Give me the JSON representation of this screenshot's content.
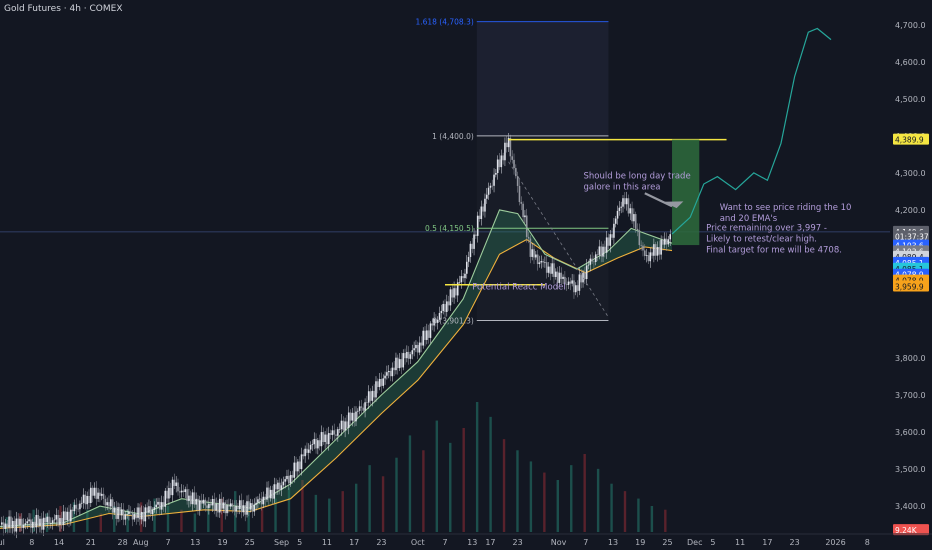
{
  "header": {
    "title": "Gold Futures · 4h · COMEX"
  },
  "colors": {
    "background": "#131722",
    "up_candle": "#e0e3eb",
    "down_candle": "#9598a1",
    "ema_fast": "#9ccc9c",
    "ema_slow": "#f0b13c",
    "projection": "#26a69a",
    "fib_high": "#2962ff",
    "target_box": "#2e6b3c",
    "accent_yellow": "#f5e642",
    "annotation": "#b39ddb",
    "volume_up": "#1f5e58",
    "volume_down": "#6b2630"
  },
  "chart_data": {
    "type": "candlestick",
    "y_axis": {
      "ticks": [
        "4,700.0",
        "4,600.0",
        "4,500.0",
        "4,400.0",
        "4,300.0",
        "4,200.0",
        "3,800.0",
        "3,700.0",
        "3,600.0",
        "3,500.0",
        "3,400.0"
      ],
      "tick_values": [
        4700,
        4600,
        4500,
        4400,
        4300,
        4200,
        3800,
        3700,
        3600,
        3500,
        3400
      ],
      "range": [
        3330,
        4740
      ]
    },
    "x_axis": {
      "ticks": [
        "Jul",
        "8",
        "14",
        "21",
        "28",
        "Aug",
        "7",
        "13",
        "19",
        "25",
        "Sep",
        "5",
        "11",
        "17",
        "23",
        "Oct",
        "7",
        "13",
        "17",
        "23",
        "Nov",
        "7",
        "13",
        "19",
        "25",
        "Dec",
        "5",
        "11",
        "17",
        "23",
        "2026",
        "8"
      ],
      "tick_days": [
        0,
        7,
        13,
        20,
        27,
        31,
        37,
        43,
        49,
        55,
        62,
        66,
        72,
        78,
        84,
        92,
        98,
        104,
        108,
        114,
        123,
        129,
        135,
        141,
        147,
        153,
        157,
        163,
        169,
        175,
        184,
        191
      ],
      "day_range": [
        0,
        196
      ]
    },
    "price_path": [
      {
        "day": 0,
        "price": 3350
      },
      {
        "day": 8,
        "price": 3355
      },
      {
        "day": 14,
        "price": 3365
      },
      {
        "day": 18,
        "price": 3410
      },
      {
        "day": 21,
        "price": 3440
      },
      {
        "day": 26,
        "price": 3380
      },
      {
        "day": 31,
        "price": 3375
      },
      {
        "day": 36,
        "price": 3410
      },
      {
        "day": 38,
        "price": 3460
      },
      {
        "day": 43,
        "price": 3410
      },
      {
        "day": 48,
        "price": 3400
      },
      {
        "day": 55,
        "price": 3395
      },
      {
        "day": 60,
        "price": 3440
      },
      {
        "day": 64,
        "price": 3480
      },
      {
        "day": 68,
        "price": 3560
      },
      {
        "day": 74,
        "price": 3600
      },
      {
        "day": 80,
        "price": 3670
      },
      {
        "day": 84,
        "price": 3740
      },
      {
        "day": 88,
        "price": 3790
      },
      {
        "day": 92,
        "price": 3830
      },
      {
        "day": 98,
        "price": 3940
      },
      {
        "day": 102,
        "price": 4020
      },
      {
        "day": 106,
        "price": 4200
      },
      {
        "day": 110,
        "price": 4330
      },
      {
        "day": 112,
        "price": 4385
      },
      {
        "day": 114,
        "price": 4260
      },
      {
        "day": 117,
        "price": 4080
      },
      {
        "day": 120,
        "price": 4050
      },
      {
        "day": 124,
        "price": 4010
      },
      {
        "day": 127,
        "price": 3990
      },
      {
        "day": 130,
        "price": 4060
      },
      {
        "day": 134,
        "price": 4110
      },
      {
        "day": 137,
        "price": 4230
      },
      {
        "day": 139,
        "price": 4195
      },
      {
        "day": 142,
        "price": 4070
      },
      {
        "day": 145,
        "price": 4095
      },
      {
        "day": 148,
        "price": 4135
      }
    ],
    "ema_fast": [
      {
        "day": 0,
        "price": 3345
      },
      {
        "day": 14,
        "price": 3355
      },
      {
        "day": 22,
        "price": 3400
      },
      {
        "day": 31,
        "price": 3378
      },
      {
        "day": 40,
        "price": 3420
      },
      {
        "day": 55,
        "price": 3395
      },
      {
        "day": 64,
        "price": 3460
      },
      {
        "day": 74,
        "price": 3580
      },
      {
        "day": 84,
        "price": 3700
      },
      {
        "day": 92,
        "price": 3790
      },
      {
        "day": 102,
        "price": 3960
      },
      {
        "day": 110,
        "price": 4200
      },
      {
        "day": 114,
        "price": 4190
      },
      {
        "day": 120,
        "price": 4080
      },
      {
        "day": 127,
        "price": 4040
      },
      {
        "day": 134,
        "price": 4090
      },
      {
        "day": 139,
        "price": 4150
      },
      {
        "day": 148,
        "price": 4110
      }
    ],
    "ema_slow": [
      {
        "day": 0,
        "price": 3340
      },
      {
        "day": 14,
        "price": 3350
      },
      {
        "day": 24,
        "price": 3380
      },
      {
        "day": 31,
        "price": 3372
      },
      {
        "day": 45,
        "price": 3390
      },
      {
        "day": 55,
        "price": 3385
      },
      {
        "day": 64,
        "price": 3420
      },
      {
        "day": 74,
        "price": 3530
      },
      {
        "day": 84,
        "price": 3650
      },
      {
        "day": 92,
        "price": 3740
      },
      {
        "day": 102,
        "price": 3890
      },
      {
        "day": 110,
        "price": 4080
      },
      {
        "day": 116,
        "price": 4120
      },
      {
        "day": 122,
        "price": 4070
      },
      {
        "day": 129,
        "price": 4030
      },
      {
        "day": 136,
        "price": 4070
      },
      {
        "day": 142,
        "price": 4100
      },
      {
        "day": 148,
        "price": 4090
      }
    ],
    "projection_path": [
      {
        "day": 148,
        "price": 4135
      },
      {
        "day": 152,
        "price": 4180
      },
      {
        "day": 155,
        "price": 4270
      },
      {
        "day": 158,
        "price": 4290
      },
      {
        "day": 162,
        "price": 4255
      },
      {
        "day": 166,
        "price": 4300
      },
      {
        "day": 169,
        "price": 4280
      },
      {
        "day": 172,
        "price": 4380
      },
      {
        "day": 175,
        "price": 4560
      },
      {
        "day": 178,
        "price": 4680
      },
      {
        "day": 180,
        "price": 4690
      },
      {
        "day": 183,
        "price": 4660
      }
    ],
    "volume": [
      4,
      5,
      6,
      5,
      7,
      8,
      6,
      5,
      7,
      6,
      8,
      9,
      7,
      6,
      5,
      7,
      9,
      11,
      8,
      7,
      9,
      12,
      14,
      10,
      9,
      11,
      13,
      18,
      15,
      20,
      26,
      22,
      30,
      24,
      28,
      35,
      31,
      25,
      22,
      19,
      16,
      14,
      18,
      21,
      17,
      13,
      11,
      9,
      7,
      6
    ],
    "fib_levels": [
      {
        "label": "1.618 (4,708.3)",
        "price": 4708.3,
        "color": "#2962ff"
      },
      {
        "label": "1 (4,400.0)",
        "price": 4400.0,
        "color": "#b2b5be"
      },
      {
        "label": "0.5 (4,150.5)",
        "price": 4150.5,
        "color": "#81c784"
      },
      {
        "label": "0 (3,901.3)",
        "price": 3901.3,
        "color": "#b2b5be"
      }
    ],
    "price_badges": [
      {
        "text": "4,389.9",
        "bg": "#f5e642",
        "fg": "#131722",
        "price": 4389.9
      },
      {
        "text": "4,140.6",
        "bg": "#5d606b",
        "fg": "#ffffff",
        "price": 4140.6
      },
      {
        "text": "01:37:37",
        "bg": "#5d606b",
        "fg": "#ffffff",
        "price": 4128
      },
      {
        "text": "4,103.6",
        "bg": "#2962ff",
        "fg": "#ffffff",
        "price": 4103.6
      },
      {
        "text": "4,103.6",
        "bg": "#787b86",
        "fg": "#ffffff",
        "price": 4088
      },
      {
        "text": "4,089.4",
        "bg": "#d1d4dc",
        "fg": "#131722",
        "price": 4073
      },
      {
        "text": "4,085.1",
        "bg": "#2962ff",
        "fg": "#ffffff",
        "price": 4057
      },
      {
        "text": "4,085.1",
        "bg": "#26c6da",
        "fg": "#131722",
        "price": 4041
      },
      {
        "text": "4,078.9",
        "bg": "#2962ff",
        "fg": "#ffffff",
        "price": 4025
      },
      {
        "text": "4,078.9",
        "bg": "#f7a21b",
        "fg": "#131722",
        "price": 4009
      },
      {
        "text": "3,959.9",
        "bg": "#f7a21b",
        "fg": "#131722",
        "price": 3993
      },
      {
        "text": "9.24K",
        "bg": "#ef5350",
        "fg": "#ffffff",
        "price": 3335
      }
    ],
    "annotations": {
      "long_trade": [
        "Should be long day trade",
        "galore in this area"
      ],
      "ema_note": [
        "Want to see price riding the 10",
        "and 20 EMA's"
      ],
      "target_note": [
        "Price remaining over 3,997 -",
        "Likely to retest/clear high.",
        "Final target for me will be 4708."
      ],
      "reacc_label": "Potential Reacc Model"
    }
  }
}
